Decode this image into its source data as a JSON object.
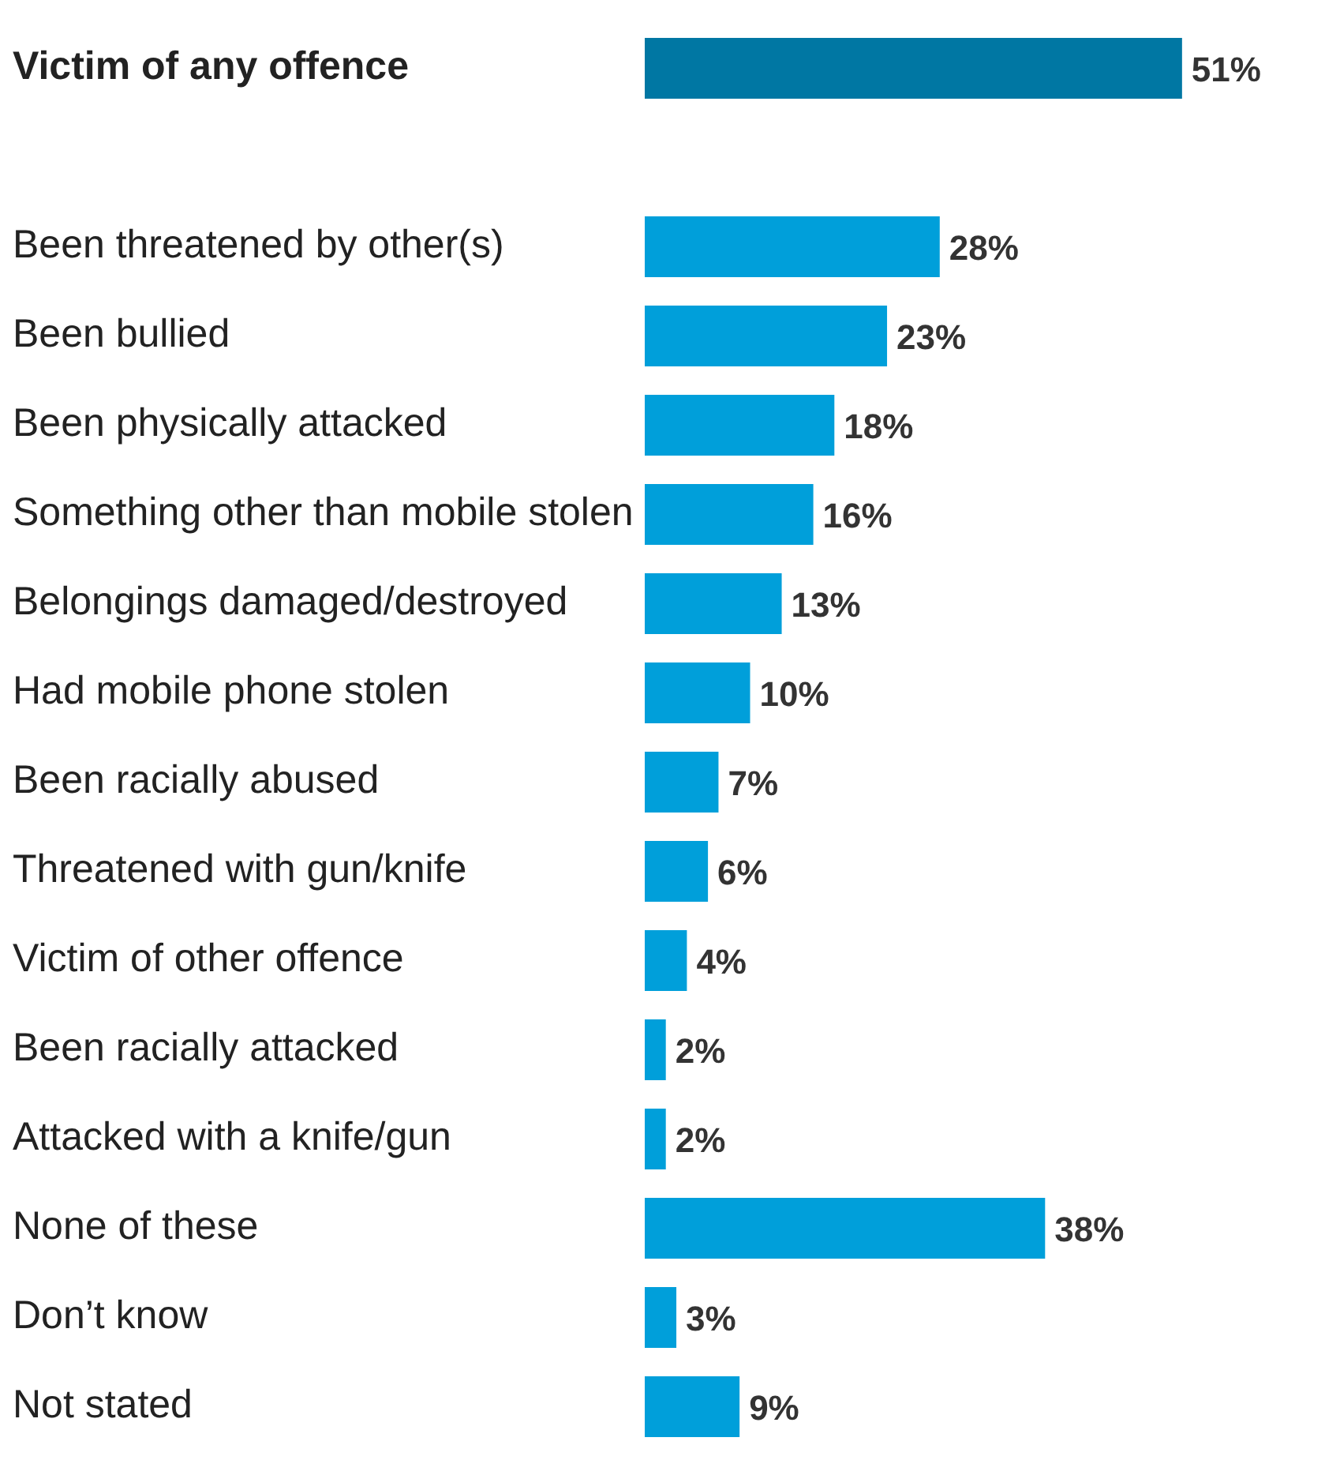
{
  "chart_data": {
    "type": "bar",
    "orientation": "horizontal",
    "legend": false,
    "grid": false,
    "tick_labels": "y",
    "categories": [
      "Victim of any offence",
      null,
      "Been threatened by other(s)",
      "Been bullied",
      "Been physically attacked",
      "Something other than mobile stolen",
      "Belongings damaged/destroyed",
      "Had mobile phone stolen",
      "Been racially abused",
      "Threatened with gun/knife",
      "Victim of other offence",
      "Been racially attacked",
      "Attacked with a knife/gun",
      "None of these",
      "Don’t know",
      "Not stated"
    ],
    "values": [
      51,
      null,
      28,
      23,
      18,
      16,
      13,
      10,
      7,
      6,
      4,
      2,
      2,
      38,
      3,
      9
    ],
    "colors": [
      "#0077a3",
      "#009fda",
      "#009fda",
      "#009fda",
      "#009fda",
      "#009fda",
      "#009fda",
      "#009fda",
      "#009fda",
      "#009fda",
      "#009fda",
      "#009fda",
      "#009fda",
      "#009fda",
      "#009fda",
      "#009fda"
    ],
    "value_labels": [
      "51%",
      null,
      "28%",
      "23%",
      "18%",
      "16%",
      "13%",
      "10%",
      "7%",
      "6%",
      "4%",
      "2%",
      "2%",
      "38%",
      "3%",
      "9%"
    ]
  }
}
